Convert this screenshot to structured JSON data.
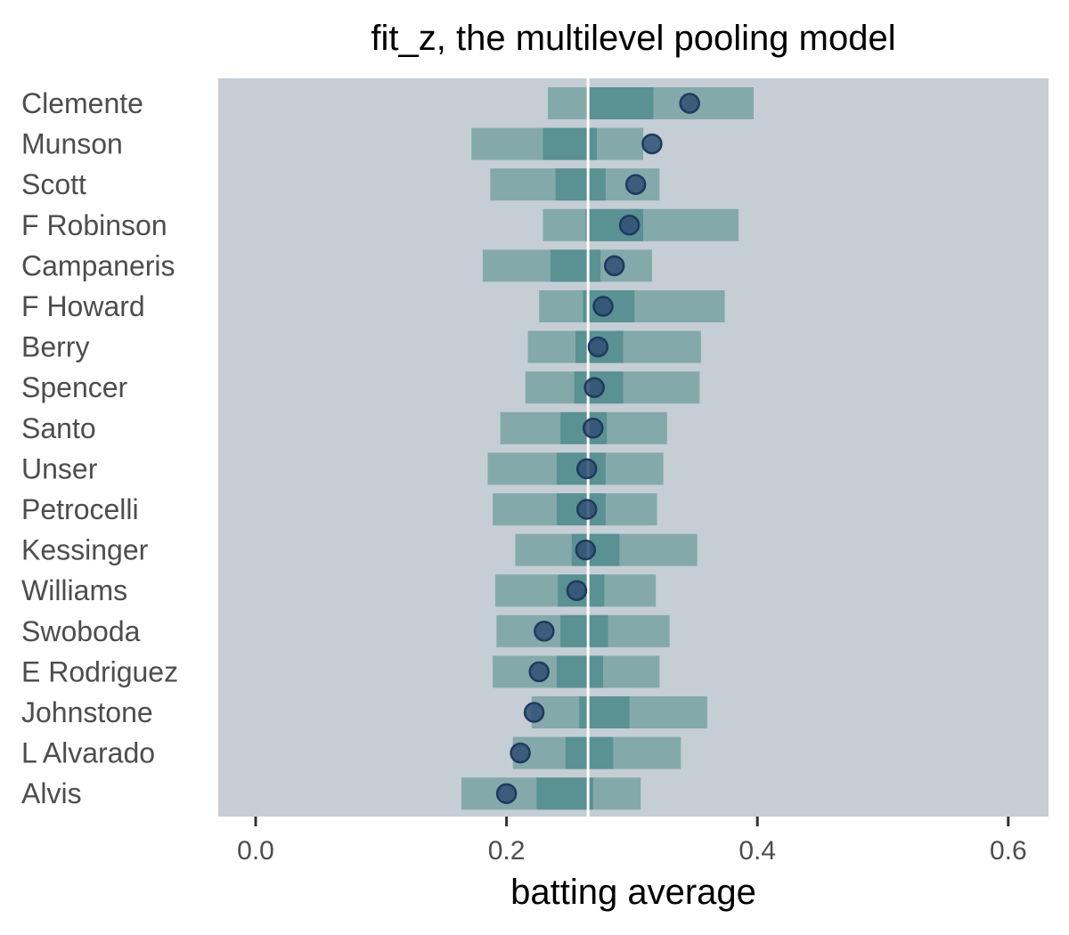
{
  "chart_data": {
    "type": "interval",
    "title": "fit_z, the multilevel pooling model",
    "xlabel": "batting average",
    "ylabel": "",
    "xlim": [
      -0.03,
      0.63
    ],
    "xticks": [
      0.0,
      0.2,
      0.4,
      0.6
    ],
    "xtick_labels": [
      "0.0",
      "0.2",
      "0.4",
      "0.6"
    ],
    "reference_line": 0.265,
    "grid": false,
    "colors": {
      "panel": "#c5cdd5",
      "outer_interval": "#84a9ab",
      "inner_interval": "#5a9193",
      "point_fill": "#2f4f72",
      "point_stroke": "#1e3a5f",
      "reference_line": "#ffffff"
    },
    "players": [
      {
        "name": "Clemente",
        "outer": [
          0.233,
          0.397
        ],
        "inner": [
          0.266,
          0.317
        ],
        "point": 0.346
      },
      {
        "name": "Munson",
        "outer": [
          0.172,
          0.309
        ],
        "inner": [
          0.229,
          0.272
        ],
        "point": 0.316
      },
      {
        "name": "Scott",
        "outer": [
          0.187,
          0.322
        ],
        "inner": [
          0.239,
          0.279
        ],
        "point": 0.303
      },
      {
        "name": "F Robinson",
        "outer": [
          0.229,
          0.385
        ],
        "inner": [
          0.263,
          0.309
        ],
        "point": 0.298
      },
      {
        "name": "Campaneris",
        "outer": [
          0.181,
          0.316
        ],
        "inner": [
          0.235,
          0.275
        ],
        "point": 0.286
      },
      {
        "name": "F Howard",
        "outer": [
          0.226,
          0.374
        ],
        "inner": [
          0.261,
          0.302
        ],
        "point": 0.277
      },
      {
        "name": "Berry",
        "outer": [
          0.217,
          0.355
        ],
        "inner": [
          0.255,
          0.293
        ],
        "point": 0.273
      },
      {
        "name": "Spencer",
        "outer": [
          0.215,
          0.354
        ],
        "inner": [
          0.254,
          0.293
        ],
        "point": 0.27
      },
      {
        "name": "Santo",
        "outer": [
          0.195,
          0.328
        ],
        "inner": [
          0.243,
          0.28
        ],
        "point": 0.269
      },
      {
        "name": "Unser",
        "outer": [
          0.185,
          0.325
        ],
        "inner": [
          0.24,
          0.279
        ],
        "point": 0.264
      },
      {
        "name": "Petrocelli",
        "outer": [
          0.189,
          0.32
        ],
        "inner": [
          0.24,
          0.279
        ],
        "point": 0.264
      },
      {
        "name": "Kessinger",
        "outer": [
          0.207,
          0.352
        ],
        "inner": [
          0.252,
          0.29
        ],
        "point": 0.263
      },
      {
        "name": "Williams",
        "outer": [
          0.191,
          0.319
        ],
        "inner": [
          0.241,
          0.278
        ],
        "point": 0.256
      },
      {
        "name": "Swoboda",
        "outer": [
          0.192,
          0.33
        ],
        "inner": [
          0.243,
          0.281
        ],
        "point": 0.23
      },
      {
        "name": "E Rodriguez",
        "outer": [
          0.189,
          0.322
        ],
        "inner": [
          0.24,
          0.277
        ],
        "point": 0.226
      },
      {
        "name": "Johnstone",
        "outer": [
          0.22,
          0.36
        ],
        "inner": [
          0.258,
          0.298
        ],
        "point": 0.222
      },
      {
        "name": "L Alvarado",
        "outer": [
          0.205,
          0.339
        ],
        "inner": [
          0.247,
          0.285
        ],
        "point": 0.211
      },
      {
        "name": "Alvis",
        "outer": [
          0.164,
          0.307
        ],
        "inner": [
          0.224,
          0.269
        ],
        "point": 0.2
      }
    ]
  }
}
